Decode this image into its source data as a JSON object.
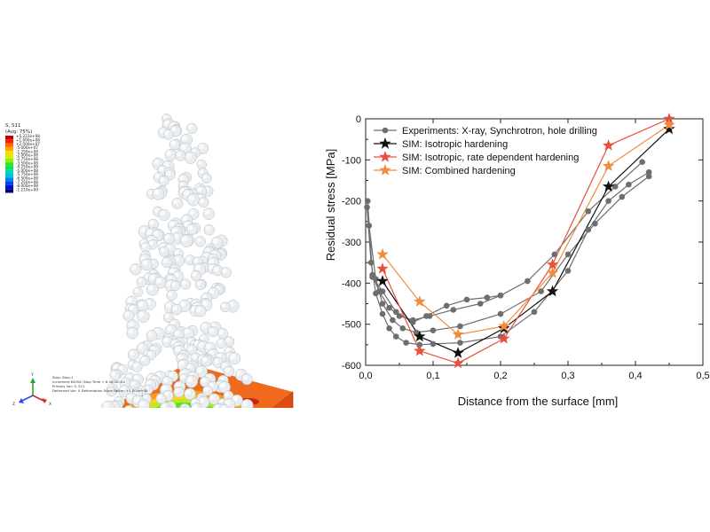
{
  "simulation": {
    "legend": {
      "title": "S, S11",
      "subtitle": "(Avg: 75%)",
      "levels": [
        "+5.222e+08",
        "+1.000e+08",
        "+2.500e+07",
        "-5.000e+07",
        "-1.250e+08",
        "-2.000e+08",
        "-2.750e+08",
        "-3.500e+08",
        "-4.250e+08",
        "-5.000e+08",
        "-5.750e+08",
        "-6.500e+08",
        "-7.250e+08",
        "-8.000e+08",
        "-1.210e+09"
      ],
      "colors": [
        "#c00000",
        "#ff1a00",
        "#ff6a00",
        "#ffa500",
        "#ffd800",
        "#d4f000",
        "#8ef000",
        "#2ee820",
        "#00e060",
        "#00d8b0",
        "#00c0e8",
        "#0080f0",
        "#0040f0",
        "#0010d0",
        "#000070"
      ]
    },
    "info_lines": [
      "Step: Step-1",
      "Increment    64594: Step Time =   6.4800E-04",
      "Primary Var: S, S11",
      "Deformed Var: U   Deformation Scale Factor: +1.000e+00"
    ],
    "triad_axes": [
      "Y",
      "Z",
      "X"
    ]
  },
  "chart_data": {
    "type": "line",
    "xlabel": "Distance from the surface [mm]",
    "ylabel": "Residual stress [MPa]",
    "xlim": [
      0,
      0.5
    ],
    "ylim": [
      -600,
      0
    ],
    "xticks": [
      0,
      0.1,
      0.2,
      0.3,
      0.4,
      0.5
    ],
    "xtick_labels": [
      "0,0",
      "0,1",
      "0,2",
      "0,3",
      "0,4",
      "0,5"
    ],
    "yticks": [
      0,
      -100,
      -200,
      -300,
      -400,
      -500,
      -600
    ],
    "ytick_labels": [
      "0",
      "-100",
      "-200",
      "-300",
      "-400",
      "-500",
      "-600"
    ],
    "legend_position": "top-left",
    "series": [
      {
        "name": "Experiments: X-ray, Synchrotron, hole drilling",
        "color": "#6e6e6e",
        "marker": "circle",
        "curves": [
          {
            "x": [
              0.002,
              0.008,
              0.015,
              0.025,
              0.035,
              0.045,
              0.06,
              0.08,
              0.1,
              0.14,
              0.2,
              0.25,
              0.3,
              0.33,
              0.36,
              0.39,
              0.42
            ],
            "y": [
              -215,
              -350,
              -425,
              -475,
              -510,
              -530,
              -545,
              -550,
              -548,
              -545,
              -530,
              -470,
              -370,
              -270,
              -200,
              -160,
              -130
            ]
          },
          {
            "x": [
              0.005,
              0.015,
              0.025,
              0.04,
              0.055,
              0.075,
              0.1,
              0.14,
              0.2,
              0.26,
              0.3,
              0.34,
              0.38,
              0.42
            ],
            "y": [
              -260,
              -390,
              -450,
              -490,
              -510,
              -520,
              -515,
              -505,
              -475,
              -420,
              -330,
              -255,
              -190,
              -140
            ]
          },
          {
            "x": [
              0.003,
              0.01,
              0.02,
              0.035,
              0.05,
              0.07,
              0.095,
              0.13,
              0.17,
              0.2,
              0.24,
              0.28,
              0.33,
              0.37,
              0.41
            ],
            "y": [
              -200,
              -380,
              -420,
              -460,
              -480,
              -490,
              -480,
              -465,
              -450,
              -430,
              -395,
              -330,
              -225,
              -165,
              -105
            ]
          },
          {
            "x": [
              0.01,
              0.025,
              0.045,
              0.07,
              0.09,
              0.12,
              0.15,
              0.18,
              0.2
            ],
            "y": [
              -385,
              -420,
              -470,
              -495,
              -480,
              -455,
              -440,
              -435,
              -430
            ]
          }
        ]
      },
      {
        "name": "SIM: Isotropic hardening",
        "color": "#111111",
        "marker": "star",
        "x": [
          0.025,
          0.08,
          0.137,
          0.205,
          0.277,
          0.36,
          0.45
        ],
        "y": [
          -395,
          -530,
          -570,
          -510,
          -420,
          -165,
          -25
        ]
      },
      {
        "name": "SIM: Isotropic, rate dependent hardening",
        "color": "#e8503c",
        "marker": "star",
        "x": [
          0.025,
          0.08,
          0.137,
          0.205,
          0.277,
          0.36,
          0.45
        ],
        "y": [
          -365,
          -565,
          -595,
          -535,
          -355,
          -65,
          0
        ]
      },
      {
        "name": "SIM: Combined hardening",
        "color": "#f08c3c",
        "marker": "star",
        "x": [
          0.025,
          0.08,
          0.137,
          0.205,
          0.277,
          0.36,
          0.45
        ],
        "y": [
          -330,
          -445,
          -525,
          -505,
          -375,
          -115,
          -15
        ]
      }
    ]
  }
}
